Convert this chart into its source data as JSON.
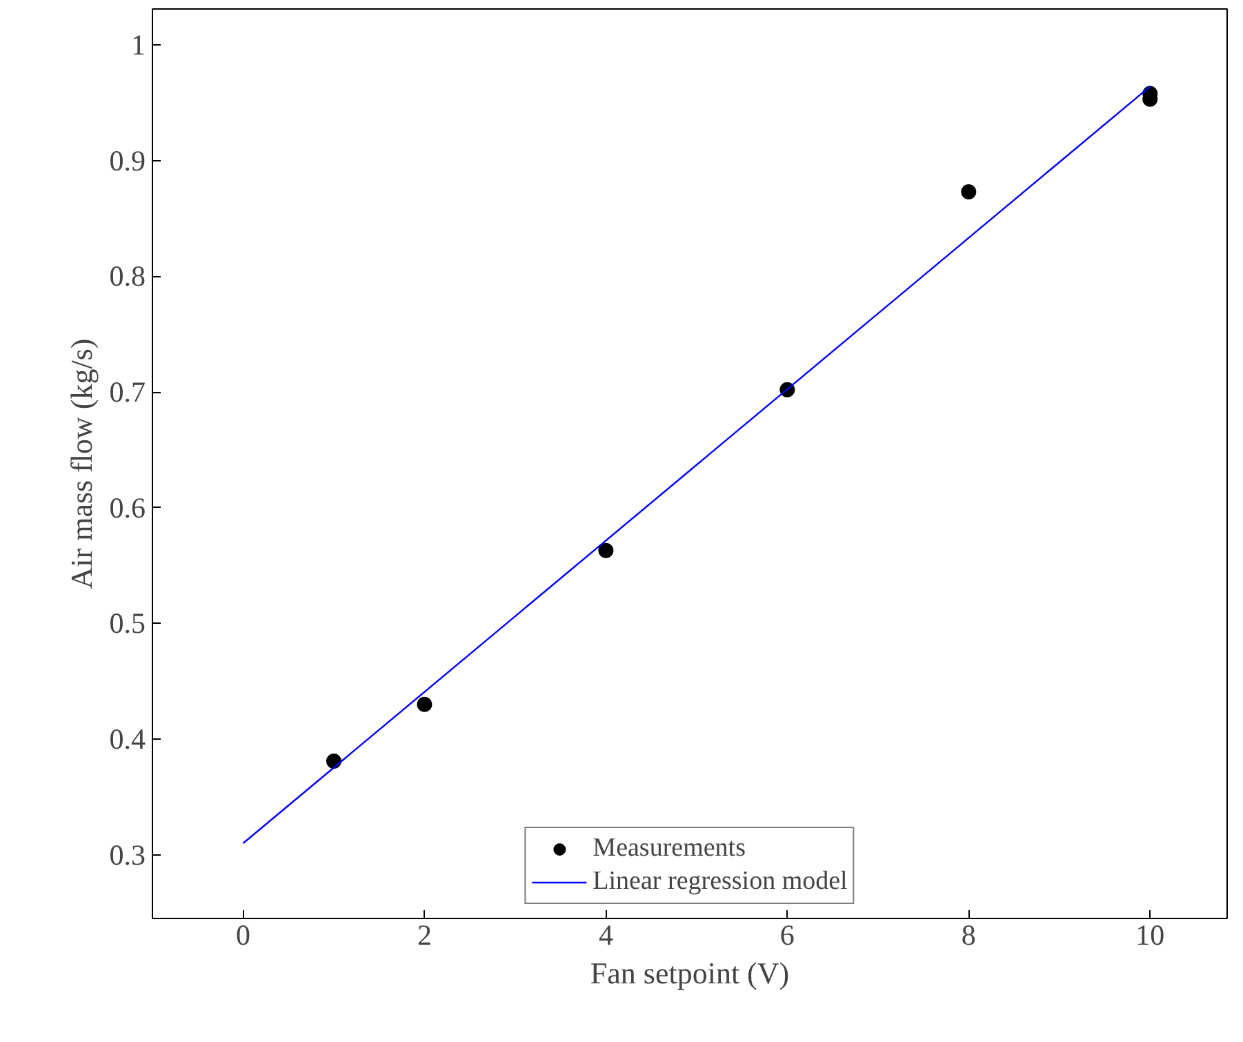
{
  "chart_data": {
    "type": "scatter",
    "xlabel": "Fan setpoint (V)",
    "ylabel": "Air mass flow (kg/s)",
    "xlim": [
      -1,
      10.85
    ],
    "ylim": [
      0.245,
      1.031
    ],
    "xticks": [
      0,
      2,
      4,
      6,
      8,
      10
    ],
    "yticks": [
      0.3,
      0.4,
      0.5,
      0.6,
      0.7,
      0.8,
      0.9,
      1
    ],
    "grid": false,
    "legend": "bottom",
    "series": [
      {
        "name": "Measurements",
        "marker": "circle",
        "color": "#000000",
        "x": [
          1,
          2,
          4,
          6,
          8,
          10,
          10
        ],
        "values": [
          0.381,
          0.43,
          0.563,
          0.702,
          0.873,
          0.958,
          0.953
        ]
      },
      {
        "name": "Linear regression model",
        "type": "line",
        "color": "#0000ff",
        "x": [
          0,
          10
        ],
        "values": [
          0.31,
          0.964
        ]
      }
    ]
  }
}
